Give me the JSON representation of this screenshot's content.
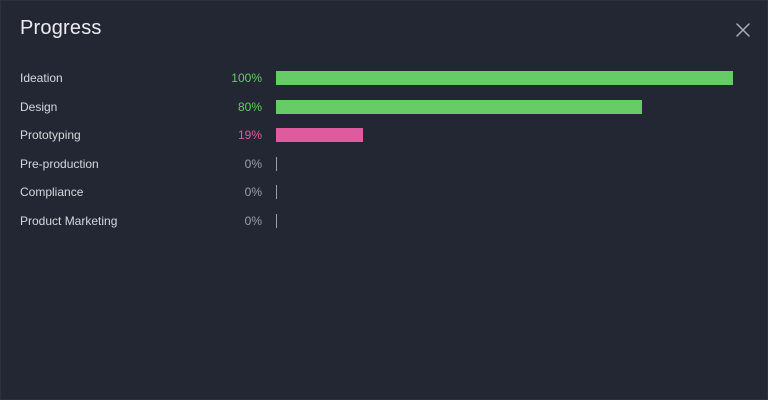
{
  "dialog": {
    "title": "Progress",
    "close_icon": "close-icon"
  },
  "colors": {
    "background": "#232733",
    "complete": "#66cc66",
    "in_progress": "#e05aa0",
    "zero": "#9aa0ab"
  },
  "rows": [
    {
      "label": "Ideation",
      "percent": 100,
      "percent_text": "100%",
      "color": "#66cc66",
      "text_color": "#66cc66"
    },
    {
      "label": "Design",
      "percent": 80,
      "percent_text": "80%",
      "color": "#66cc66",
      "text_color": "#66cc66"
    },
    {
      "label": "Prototyping",
      "percent": 19,
      "percent_text": "19%",
      "color": "#e05aa0",
      "text_color": "#e05aa0"
    },
    {
      "label": "Pre-production",
      "percent": 0,
      "percent_text": "0%",
      "color": "#9aa0ab",
      "text_color": "#9aa0ab"
    },
    {
      "label": "Compliance",
      "percent": 0,
      "percent_text": "0%",
      "color": "#9aa0ab",
      "text_color": "#9aa0ab"
    },
    {
      "label": "Product Marketing",
      "percent": 0,
      "percent_text": "0%",
      "color": "#9aa0ab",
      "text_color": "#9aa0ab"
    }
  ]
}
